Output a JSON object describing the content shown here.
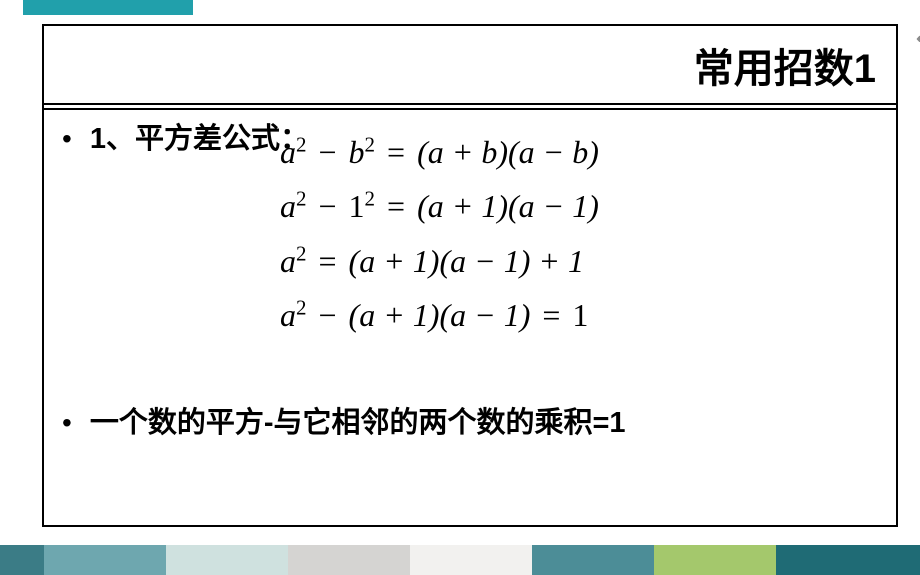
{
  "title": "常用招数1",
  "chevrons": "‹‹‹",
  "bullet1_label": "1、平方差公式：",
  "formulas": {
    "f1_a": "a",
    "f1_sup1": "2",
    "f1_op1": " − ",
    "f1_b": "b",
    "f1_sup2": "2",
    "f1_op2": " = ",
    "f1_rest": "(a + b)(a − b)",
    "f2_a": "a",
    "f2_sup1": "2",
    "f2_op1": " − ",
    "f2_one": "1",
    "f2_sup2": "2",
    "f2_op2": " = ",
    "f2_rest": "(a + 1)(a − 1)",
    "f3_a": "a",
    "f3_sup1": "2",
    "f3_op1": " = ",
    "f3_rest": "(a + 1)(a − 1) + 1",
    "f4_a": "a",
    "f4_sup1": "2",
    "f4_op1": " − ",
    "f4_mid": "(a + 1)(a − 1)",
    "f4_op2": " = ",
    "f4_one": "1"
  },
  "conclusion": "一个数的平方-与它相邻的两个数的乘积=1",
  "colors": {
    "teal": "#21a0ab",
    "border": "#000000",
    "chev": "#888888"
  },
  "bottom_stripes": [
    {
      "w": 44,
      "c": "#3b7c86"
    },
    {
      "w": 122,
      "c": "#6ea7af"
    },
    {
      "w": 122,
      "c": "#cfe1df"
    },
    {
      "w": 122,
      "c": "#d5d4d2"
    },
    {
      "w": 122,
      "c": "#f2f1ef"
    },
    {
      "w": 122,
      "c": "#4c8d97"
    },
    {
      "w": 122,
      "c": "#a4c86c"
    },
    {
      "w": 144,
      "c": "#1f6b75"
    }
  ]
}
